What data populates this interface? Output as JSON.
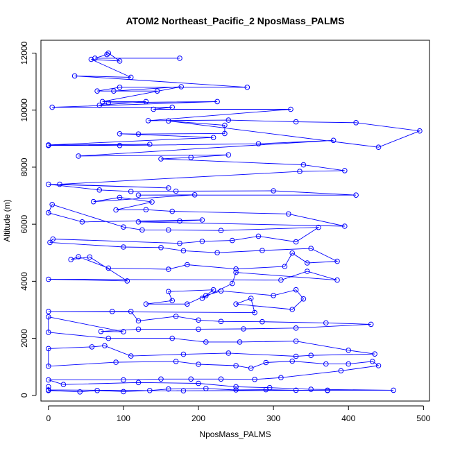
{
  "chart_data": {
    "type": "line",
    "title": "ATOM2 Northeast_Pacific_2 NposMass_PALMS",
    "xlabel": "NposMass_PALMS",
    "ylabel": "Altitude (m)",
    "xlim": [
      -10,
      508
    ],
    "ylim": [
      -200,
      12450
    ],
    "xticks": [
      0,
      100,
      200,
      300,
      400,
      500
    ],
    "yticks": [
      0,
      2000,
      4000,
      6000,
      8000,
      10000,
      12000
    ],
    "series_color": "#0000ff",
    "marker": "open-circle",
    "grid": false,
    "legend": "none",
    "series": [
      {
        "points": [
          [
            175,
            11820
          ],
          [
            62,
            11820
          ],
          [
            78,
            11950
          ],
          [
            80,
            12000
          ],
          [
            95,
            11720
          ],
          [
            57,
            11780
          ],
          [
            110,
            11150
          ],
          [
            35,
            11200
          ],
          [
            265,
            10800
          ],
          [
            95,
            10800
          ],
          [
            65,
            10670
          ],
          [
            145,
            10670
          ],
          [
            87,
            10670
          ],
          [
            177,
            10820
          ],
          [
            72,
            10300
          ],
          [
            130,
            10300
          ],
          [
            68,
            10170
          ],
          [
            80,
            10260
          ],
          [
            225,
            10300
          ],
          [
            5,
            10100
          ],
          [
            165,
            10100
          ],
          [
            140,
            10030
          ],
          [
            323,
            10030
          ],
          [
            133,
            9630
          ],
          [
            240,
            9650
          ],
          [
            330,
            9590
          ],
          [
            410,
            9560
          ],
          [
            495,
            9270
          ],
          [
            440,
            8700
          ],
          [
            160,
            9620
          ],
          [
            235,
            9470
          ],
          [
            235,
            9180
          ],
          [
            120,
            9160
          ],
          [
            95,
            9170
          ],
          [
            220,
            9040
          ],
          [
            0,
            8780
          ],
          [
            135,
            8800
          ],
          [
            0,
            8760
          ],
          [
            95,
            8760
          ],
          [
            280,
            8820
          ],
          [
            380,
            8940
          ],
          [
            40,
            8390
          ],
          [
            240,
            8430
          ],
          [
            190,
            8340
          ],
          [
            150,
            8290
          ],
          [
            340,
            8080
          ],
          [
            395,
            7880
          ],
          [
            335,
            7850
          ],
          [
            15,
            7400
          ],
          [
            160,
            7270
          ],
          [
            0,
            7400
          ],
          [
            68,
            7200
          ],
          [
            110,
            7150
          ],
          [
            170,
            7160
          ],
          [
            300,
            7170
          ],
          [
            410,
            7020
          ],
          [
            120,
            7020
          ],
          [
            195,
            7030
          ],
          [
            60,
            6790
          ],
          [
            95,
            6940
          ],
          [
            138,
            6780
          ],
          [
            90,
            6500
          ],
          [
            130,
            6510
          ],
          [
            165,
            6450
          ],
          [
            320,
            6360
          ],
          [
            395,
            5930
          ],
          [
            120,
            6080
          ],
          [
            175,
            6110
          ],
          [
            205,
            6150
          ],
          [
            45,
            6080
          ],
          [
            0,
            6400
          ],
          [
            5,
            6690
          ],
          [
            100,
            5900
          ],
          [
            125,
            5800
          ],
          [
            160,
            5800
          ],
          [
            230,
            5780
          ],
          [
            360,
            5890
          ],
          [
            330,
            5380
          ],
          [
            280,
            5580
          ],
          [
            245,
            5430
          ],
          [
            205,
            5400
          ],
          [
            175,
            5330
          ],
          [
            6,
            5480
          ],
          [
            2,
            5360
          ],
          [
            100,
            5200
          ],
          [
            150,
            5180
          ],
          [
            180,
            5070
          ],
          [
            225,
            5000
          ],
          [
            285,
            5080
          ],
          [
            350,
            5150
          ],
          [
            385,
            4700
          ],
          [
            345,
            4640
          ],
          [
            325,
            4990
          ],
          [
            315,
            4520
          ],
          [
            250,
            4430
          ],
          [
            185,
            4580
          ],
          [
            160,
            4420
          ],
          [
            80,
            4460
          ],
          [
            40,
            4860
          ],
          [
            30,
            4760
          ],
          [
            55,
            4850
          ],
          [
            105,
            4010
          ],
          [
            0,
            4070
          ],
          [
            310,
            4040
          ],
          [
            345,
            4350
          ],
          [
            385,
            4040
          ],
          [
            250,
            4310
          ],
          [
            245,
            3920
          ],
          [
            205,
            3400
          ],
          [
            220,
            3700
          ],
          [
            160,
            3640
          ],
          [
            165,
            3320
          ],
          [
            130,
            3200
          ],
          [
            185,
            3200
          ],
          [
            210,
            3500
          ],
          [
            230,
            3660
          ],
          [
            300,
            3500
          ],
          [
            330,
            3700
          ],
          [
            340,
            3380
          ],
          [
            325,
            3010
          ],
          [
            250,
            3200
          ],
          [
            270,
            3400
          ],
          [
            275,
            2900
          ],
          [
            0,
            2940
          ],
          [
            85,
            2940
          ],
          [
            110,
            2940
          ],
          [
            120,
            2610
          ],
          [
            170,
            2770
          ],
          [
            200,
            2640
          ],
          [
            230,
            2590
          ],
          [
            285,
            2580
          ],
          [
            370,
            2540
          ],
          [
            430,
            2490
          ],
          [
            330,
            2360
          ],
          [
            260,
            2330
          ],
          [
            200,
            2320
          ],
          [
            120,
            2320
          ],
          [
            70,
            2240
          ],
          [
            100,
            2230
          ],
          [
            0,
            2750
          ],
          [
            0,
            2210
          ],
          [
            80,
            2000
          ],
          [
            165,
            2000
          ],
          [
            210,
            1870
          ],
          [
            255,
            1870
          ],
          [
            330,
            1900
          ],
          [
            400,
            1580
          ],
          [
            435,
            1450
          ],
          [
            350,
            1400
          ],
          [
            330,
            1370
          ],
          [
            240,
            1480
          ],
          [
            180,
            1440
          ],
          [
            110,
            1380
          ],
          [
            75,
            1740
          ],
          [
            58,
            1700
          ],
          [
            0,
            1640
          ],
          [
            0,
            1020
          ],
          [
            90,
            1160
          ],
          [
            170,
            1190
          ],
          [
            200,
            1090
          ],
          [
            250,
            1040
          ],
          [
            270,
            950
          ],
          [
            290,
            1150
          ],
          [
            325,
            1200
          ],
          [
            370,
            1100
          ],
          [
            400,
            1100
          ],
          [
            432,
            1190
          ],
          [
            440,
            1040
          ],
          [
            390,
            860
          ],
          [
            310,
            620
          ],
          [
            275,
            560
          ],
          [
            230,
            570
          ],
          [
            190,
            570
          ],
          [
            150,
            570
          ],
          [
            100,
            540
          ],
          [
            0,
            540
          ],
          [
            20,
            380
          ],
          [
            120,
            450
          ],
          [
            200,
            420
          ],
          [
            250,
            300
          ],
          [
            295,
            270
          ],
          [
            350,
            210
          ],
          [
            460,
            180
          ],
          [
            330,
            180
          ],
          [
            290,
            200
          ],
          [
            250,
            190
          ],
          [
            210,
            240
          ],
          [
            160,
            220
          ],
          [
            135,
            170
          ],
          [
            100,
            130
          ],
          [
            65,
            170
          ],
          [
            42,
            120
          ],
          [
            0,
            170
          ],
          [
            0,
            300
          ],
          [
            0,
            190
          ],
          [
            180,
            160
          ],
          [
            372,
            180
          ],
          [
            372,
            170
          ]
        ]
      }
    ]
  }
}
